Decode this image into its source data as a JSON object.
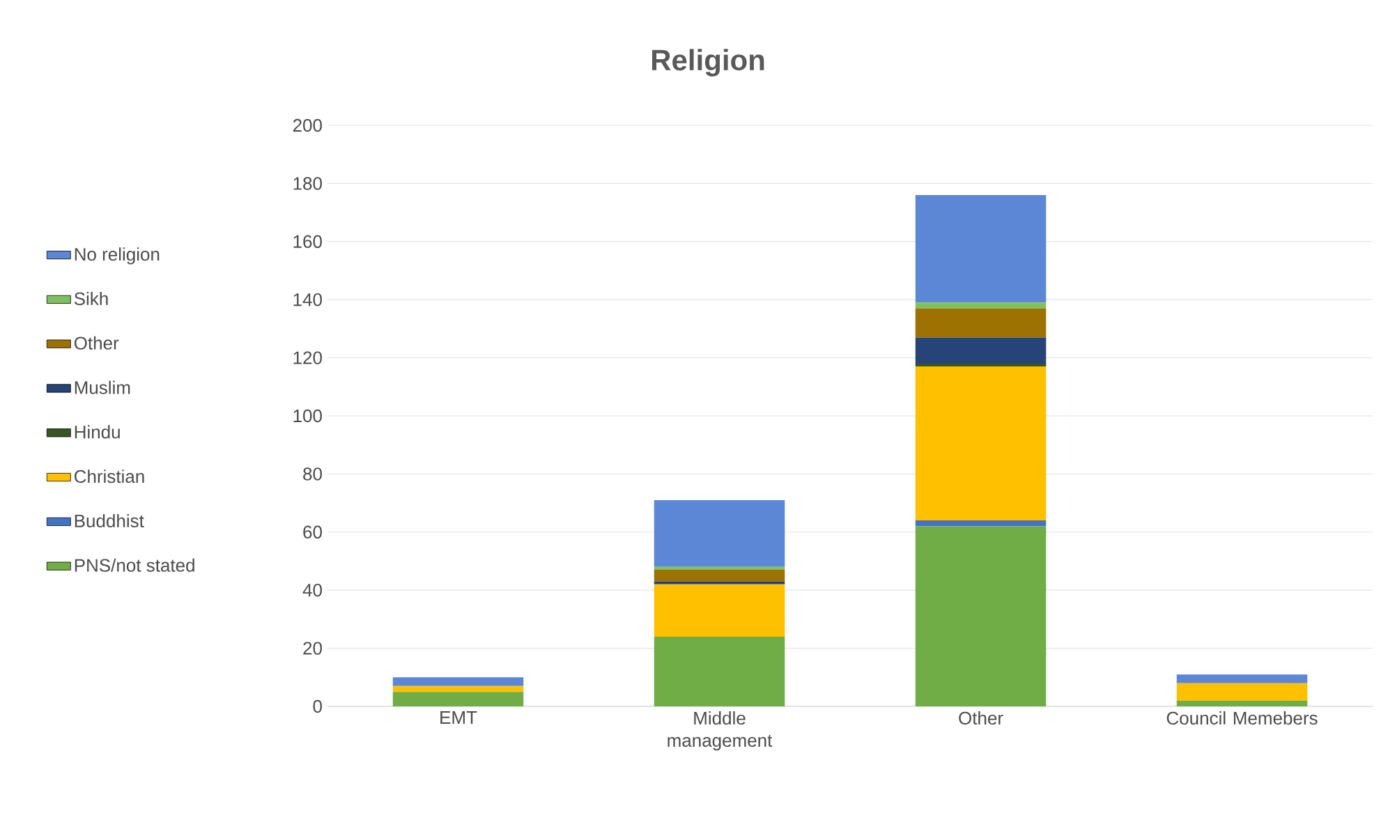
{
  "chart_data": {
    "type": "bar",
    "title": "Religion",
    "categories": [
      "EMT",
      "Middle management",
      "Other",
      "Council Memebers"
    ],
    "stacked": true,
    "legend": "left",
    "grid": "y",
    "ylim": [
      0,
      200
    ],
    "yticks": [
      0,
      20,
      40,
      60,
      80,
      100,
      120,
      140,
      160,
      180,
      200
    ],
    "series": [
      {
        "name": "PNS/not stated",
        "color": "#70ad47",
        "values": [
          5,
          24,
          62,
          2
        ]
      },
      {
        "name": "Buddhist",
        "color": "#4472c4",
        "values": [
          0,
          0,
          2,
          0
        ]
      },
      {
        "name": "Christian",
        "color": "#ffc000",
        "values": [
          2,
          18,
          53,
          6
        ]
      },
      {
        "name": "Hindu",
        "color": "#375623",
        "values": [
          0,
          0,
          1,
          0
        ]
      },
      {
        "name": "Muslim",
        "color": "#264478",
        "values": [
          0,
          1,
          9,
          0
        ]
      },
      {
        "name": "Other",
        "color": "#9e7103",
        "values": [
          0,
          4,
          10,
          0
        ]
      },
      {
        "name": "Sikh",
        "color": "#7fc25d",
        "values": [
          0,
          1,
          2,
          0
        ]
      },
      {
        "name": "No religion",
        "color": "#5b87d6",
        "values": [
          3,
          23,
          37,
          3
        ]
      }
    ]
  }
}
